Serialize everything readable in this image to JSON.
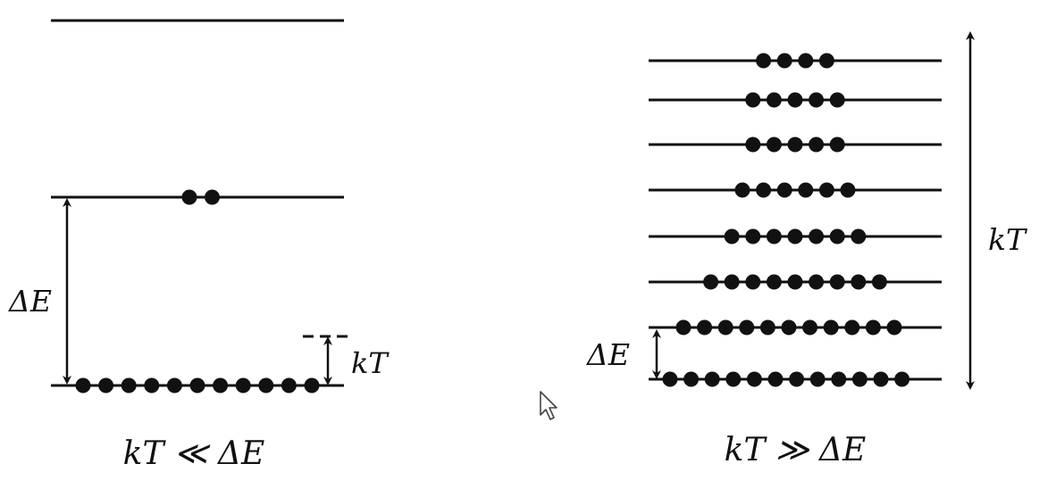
{
  "colors": {
    "ink": "#111111",
    "background": "#ffffff"
  },
  "left_panel": {
    "delta_e_label": "ΔE",
    "kt_label": "kT",
    "caption": "kT ≪ ΔE",
    "levels": [
      {
        "name": "upper-level",
        "particles": 0
      },
      {
        "name": "excited-level",
        "particles": 2
      },
      {
        "name": "ground-level",
        "particles": 11
      }
    ]
  },
  "right_panel": {
    "delta_e_label": "ΔE",
    "kt_label": "kT",
    "caption": "kT ≫ ΔE",
    "level_particle_counts": [
      4,
      5,
      5,
      6,
      7,
      9,
      11,
      12
    ]
  },
  "cursor": {
    "icon": "mouse-pointer-icon"
  }
}
